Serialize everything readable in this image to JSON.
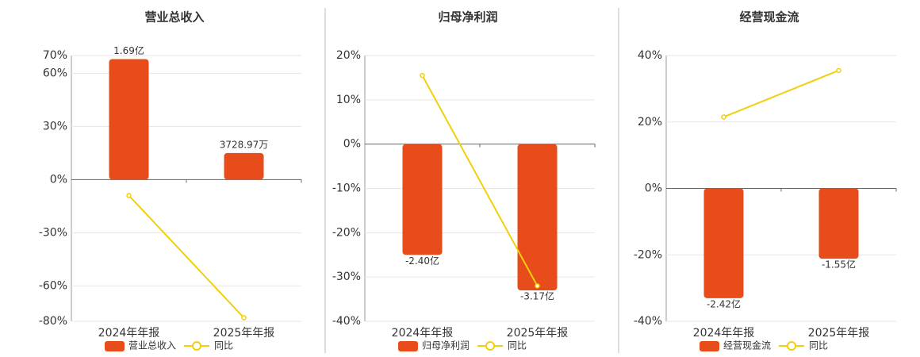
{
  "chart_data": [
    {
      "type": "bar",
      "title": "营业总收入",
      "categories": [
        "2024年年报",
        "2025年年报"
      ],
      "series": [
        {
          "name": "营业总收入",
          "color": "#e84c1b",
          "axis": "y2",
          "values": [
            169000000,
            37289700
          ],
          "value_labels": [
            "1.69亿",
            "3728.97万"
          ]
        },
        {
          "name": "同比",
          "color": "#f2cf0c",
          "type": "line",
          "values": [
            -9,
            -78
          ]
        }
      ],
      "ylim": [
        -80,
        70
      ],
      "yticks": [
        {
          "value": -80,
          "label": "-80%"
        },
        {
          "value": -60,
          "label": "-60%"
        },
        {
          "value": -30,
          "label": "-30%"
        },
        {
          "value": 0,
          "label": "0%"
        },
        {
          "value": 30,
          "label": "30%"
        },
        {
          "value": 60,
          "label": "60%"
        },
        {
          "value": 70,
          "label": "70%"
        }
      ],
      "y2lim": [
        -198800000,
        174000000
      ],
      "grid": true
    },
    {
      "type": "bar",
      "title": "归母净利润",
      "categories": [
        "2024年年报",
        "2025年年报"
      ],
      "series": [
        {
          "name": "归母净利润",
          "color": "#e84c1b",
          "axis": "y2",
          "values": [
            -240000000,
            -317000000
          ],
          "value_labels": [
            "-2.40亿",
            "-3.17亿"
          ]
        },
        {
          "name": "同比",
          "color": "#f2cf0c",
          "type": "line",
          "values": [
            15.5,
            -32
          ]
        }
      ],
      "ylim": [
        -40,
        20
      ],
      "yticks": [
        {
          "value": -40,
          "label": "-40%"
        },
        {
          "value": -30,
          "label": "-30%"
        },
        {
          "value": -20,
          "label": "-20%"
        },
        {
          "value": -10,
          "label": "-10%"
        },
        {
          "value": 0,
          "label": "0%"
        },
        {
          "value": 10,
          "label": "10%"
        },
        {
          "value": 20,
          "label": "20%"
        }
      ],
      "y2lim": [
        -384000000,
        192000000
      ],
      "grid": true
    },
    {
      "type": "bar",
      "title": "经营现金流",
      "categories": [
        "2024年年报",
        "2025年年报"
      ],
      "series": [
        {
          "name": "经营现金流",
          "color": "#e84c1b",
          "axis": "y2",
          "values": [
            -242000000,
            -155000000
          ],
          "value_labels": [
            "-2.42亿",
            "-1.55亿"
          ]
        },
        {
          "name": "同比",
          "color": "#f2cf0c",
          "type": "line",
          "values": [
            21.5,
            35.5
          ]
        }
      ],
      "ylim": [
        -40,
        40
      ],
      "yticks": [
        {
          "value": -40,
          "label": "-40%"
        },
        {
          "value": -20,
          "label": "-20%"
        },
        {
          "value": 0,
          "label": "0%"
        },
        {
          "value": 20,
          "label": "20%"
        },
        {
          "value": 40,
          "label": "40%"
        }
      ],
      "y2lim": [
        -293000000,
        293000000
      ],
      "grid": true
    }
  ]
}
